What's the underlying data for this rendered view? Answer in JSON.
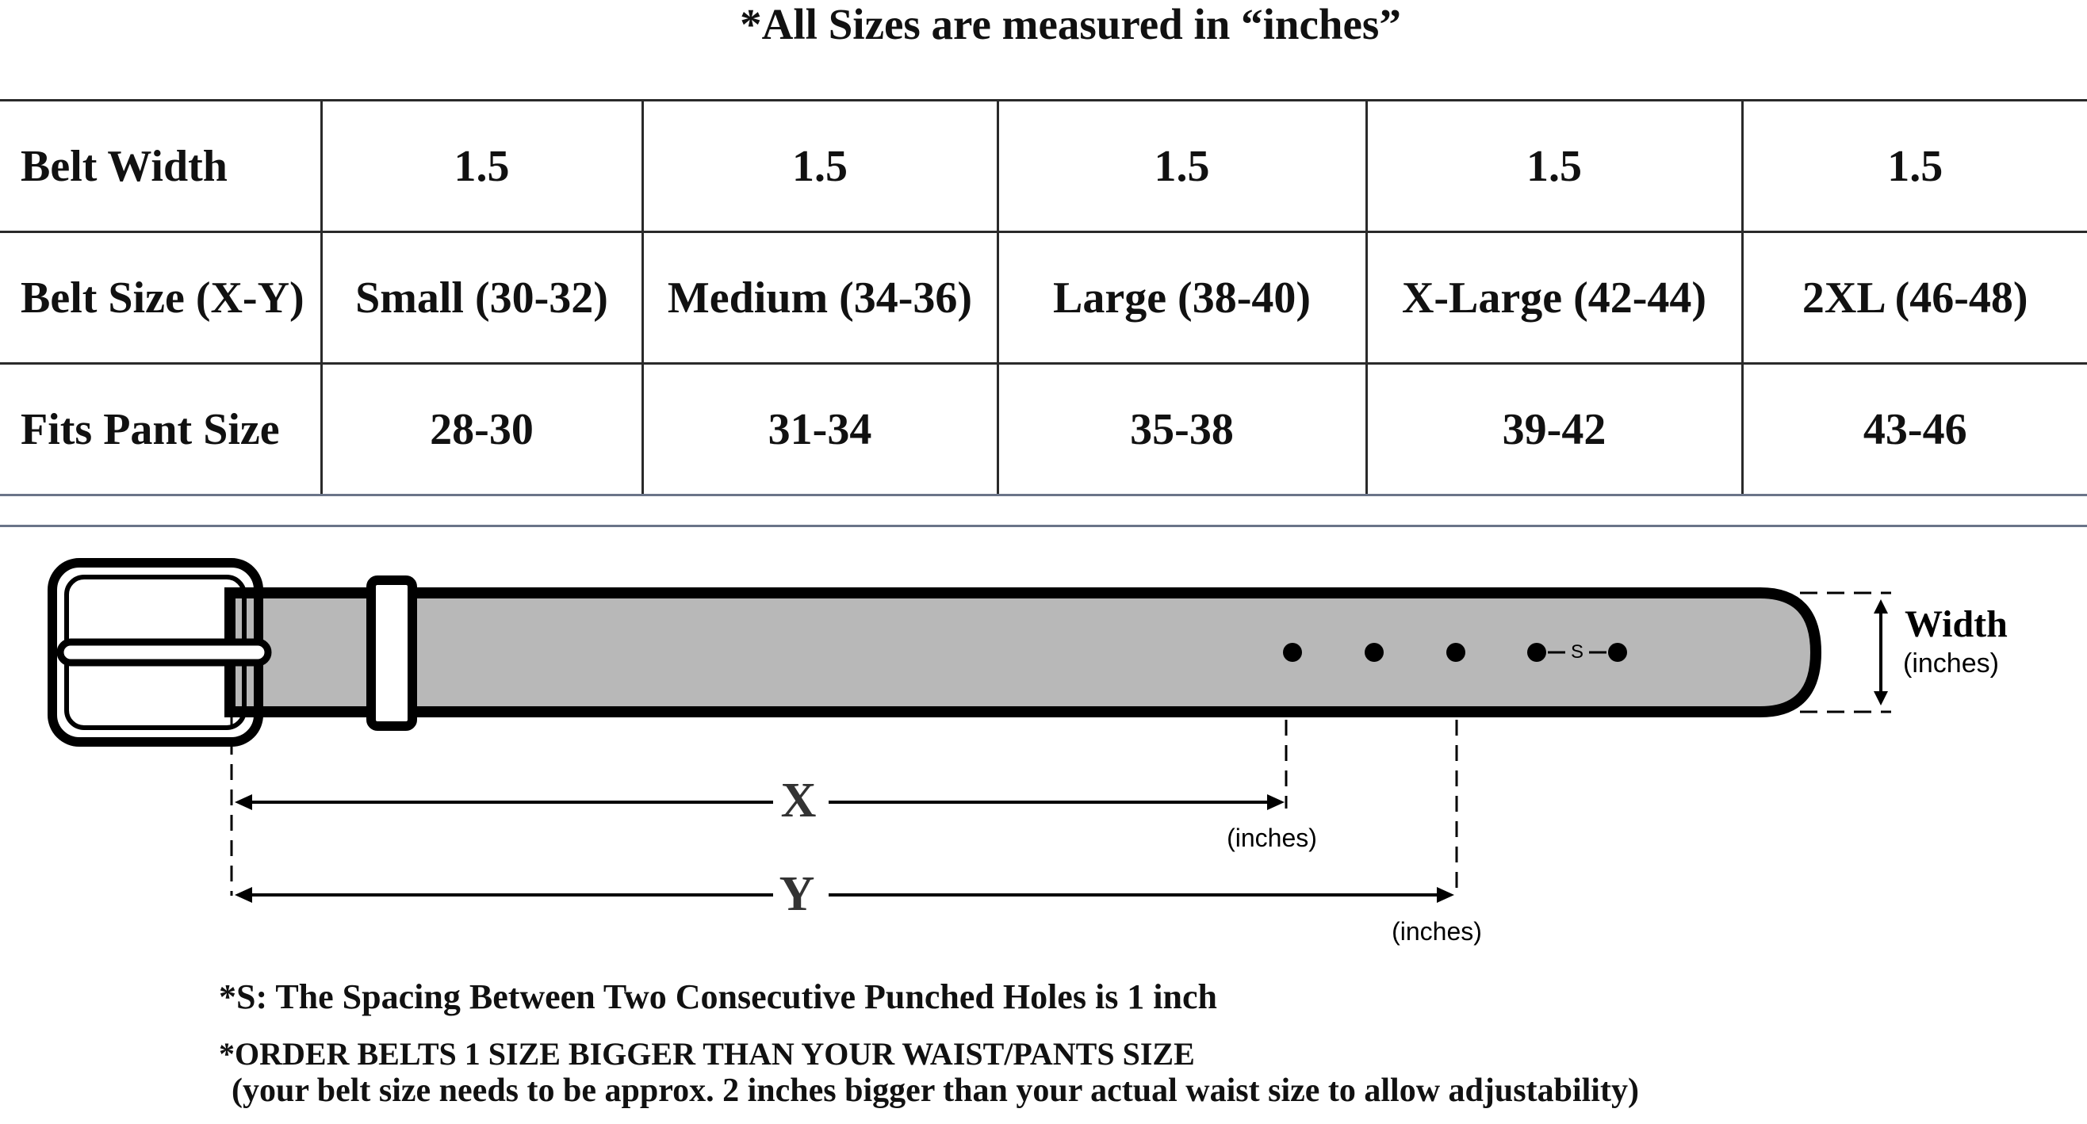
{
  "heading": "*All Sizes are measured in “inches”",
  "table": {
    "rows": [
      {
        "label": "Belt Width",
        "cells": [
          "1.5",
          "1.5",
          "1.5",
          "1.5",
          "1.5"
        ]
      },
      {
        "label": "Belt Size (X-Y)",
        "cells": [
          "Small (30-32)",
          "Medium (34-36)",
          "Large (38-40)",
          "X-Large (42-44)",
          "2XL (46-48)"
        ]
      },
      {
        "label": "Fits Pant Size",
        "cells": [
          "28-30",
          "31-34",
          "35-38",
          "39-42",
          "43-46"
        ]
      }
    ]
  },
  "diagram": {
    "spacing_label": "S",
    "width_label": "Width",
    "width_unit": "(inches)",
    "x_label": "X",
    "x_unit": "(inches)",
    "y_label": "Y",
    "y_unit": "(inches)"
  },
  "notes": {
    "spacing_note": "*S: The Spacing Between Two Consecutive Punched Holes is 1 inch",
    "order_note": "*ORDER BELTS 1 SIZE BIGGER THAN YOUR WAIST/PANTS SIZE",
    "adjust_note": "(your belt size needs to be approx. 2 inches bigger than your actual waist size to allow adjustability)"
  },
  "colors": {
    "belt_fill": "#b8b8b8",
    "outline": "#000000",
    "separator": "#6a7488"
  }
}
